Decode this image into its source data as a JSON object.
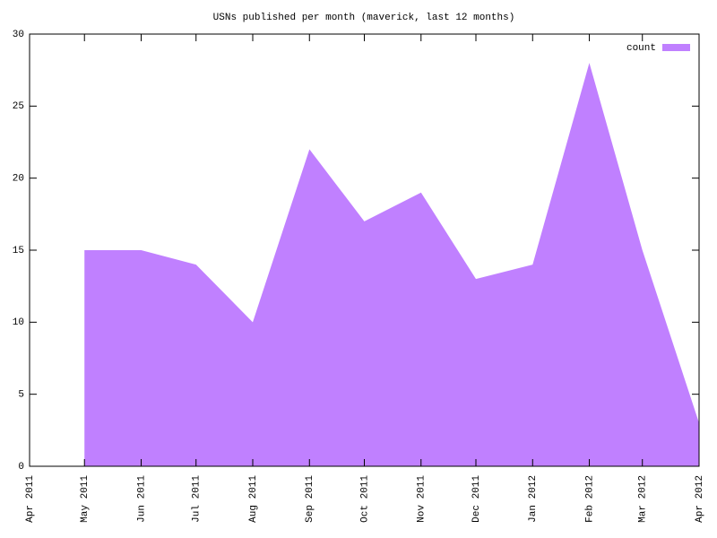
{
  "chart_data": {
    "type": "area",
    "title": "USNs published per month (maverick, last 12 months)",
    "x": [
      "2011-05",
      "2011-06",
      "2011-07",
      "2011-08",
      "2011-09",
      "2011-10",
      "2011-11",
      "2011-12",
      "2012-01",
      "2012-02",
      "2012-03",
      "2012-04"
    ],
    "series": [
      {
        "name": "count",
        "color": "#c080ff",
        "values": [
          15,
          15,
          14,
          10,
          22,
          17,
          19,
          13,
          14,
          28,
          15,
          3
        ]
      }
    ],
    "xlim": [
      "2011-04",
      "2012-04"
    ],
    "xticks": [
      {
        "value": "2011-04",
        "label": "Apr 2011"
      },
      {
        "value": "2011-05",
        "label": "May 2011"
      },
      {
        "value": "2011-06",
        "label": "Jun 2011"
      },
      {
        "value": "2011-07",
        "label": "Jul 2011"
      },
      {
        "value": "2011-08",
        "label": "Aug 2011"
      },
      {
        "value": "2011-09",
        "label": "Sep 2011"
      },
      {
        "value": "2011-10",
        "label": "Oct 2011"
      },
      {
        "value": "2011-11",
        "label": "Nov 2011"
      },
      {
        "value": "2011-12",
        "label": "Dec 2011"
      },
      {
        "value": "2012-01",
        "label": "Jan 2012"
      },
      {
        "value": "2012-02",
        "label": "Feb 2012"
      },
      {
        "value": "2012-03",
        "label": "Mar 2012"
      },
      {
        "value": "2012-04",
        "label": "Apr 2012"
      }
    ],
    "ylim": [
      0,
      30
    ],
    "yticks": [
      0,
      5,
      10,
      15,
      20,
      25,
      30
    ],
    "legend": "top-right"
  }
}
